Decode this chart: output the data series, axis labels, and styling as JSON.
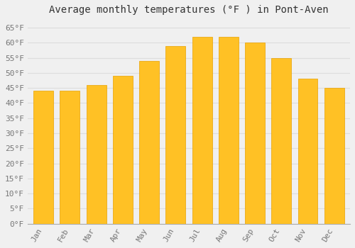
{
  "title": "Average monthly temperatures (°F ) in Pont-Aven",
  "months": [
    "Jan",
    "Feb",
    "Mar",
    "Apr",
    "May",
    "Jun",
    "Jul",
    "Aug",
    "Sep",
    "Oct",
    "Nov",
    "Dec"
  ],
  "values": [
    44,
    44,
    46,
    49,
    54,
    59,
    62,
    62,
    60,
    55,
    48,
    45
  ],
  "bar_color_main": "#FFC125",
  "bar_color_edge": "#E8A000",
  "background_color": "#F0F0F0",
  "grid_color": "#DDDDDD",
  "text_color": "#777777",
  "title_color": "#333333",
  "ylim": [
    0,
    68
  ],
  "yticks": [
    0,
    5,
    10,
    15,
    20,
    25,
    30,
    35,
    40,
    45,
    50,
    55,
    60,
    65
  ],
  "title_fontsize": 10,
  "tick_fontsize": 8,
  "font_family": "monospace"
}
